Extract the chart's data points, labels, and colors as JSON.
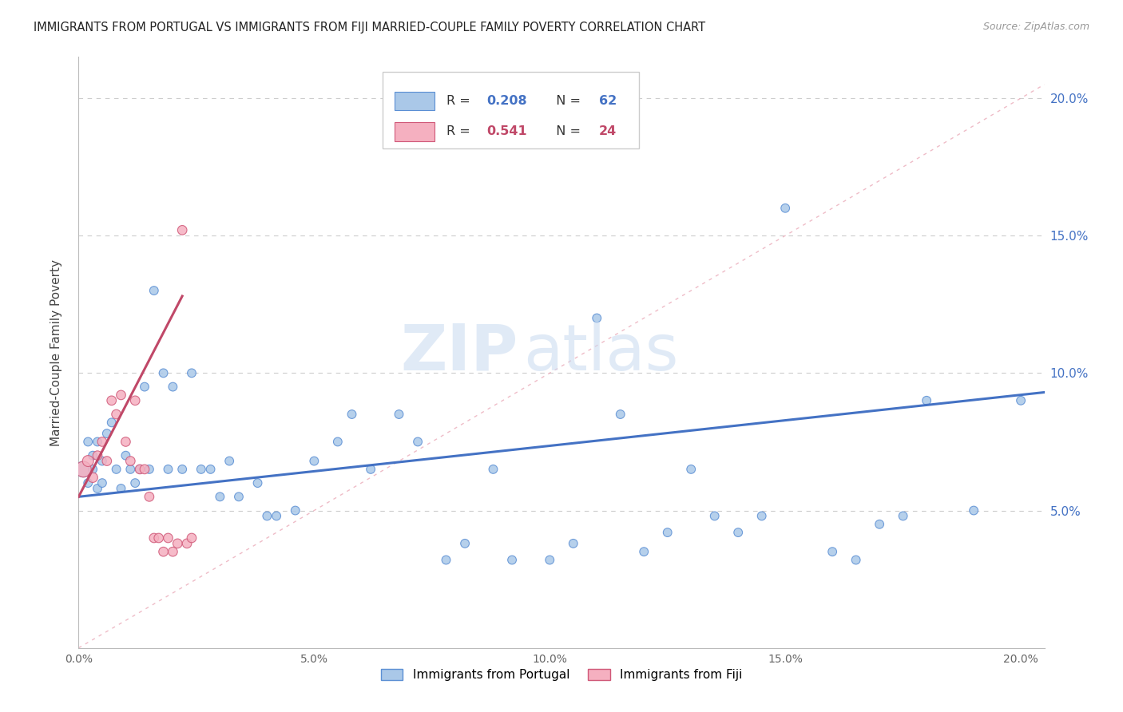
{
  "title": "IMMIGRANTS FROM PORTUGAL VS IMMIGRANTS FROM FIJI MARRIED-COUPLE FAMILY POVERTY CORRELATION CHART",
  "source": "Source: ZipAtlas.com",
  "ylabel": "Married-Couple Family Poverty",
  "xlim": [
    0.0,
    0.205
  ],
  "ylim": [
    0.0,
    0.215
  ],
  "xticks": [
    0.0,
    0.05,
    0.1,
    0.15,
    0.2
  ],
  "yticks": [
    0.05,
    0.1,
    0.15,
    0.2
  ],
  "xtick_labels": [
    "0.0%",
    "5.0%",
    "10.0%",
    "15.0%",
    "20.0%"
  ],
  "ytick_labels": [
    "5.0%",
    "10.0%",
    "15.0%",
    "20.0%"
  ],
  "legend_labels": [
    "Immigrants from Portugal",
    "Immigrants from Fiji"
  ],
  "portugal_color": "#aac8e8",
  "fiji_color": "#f5b0c0",
  "portugal_edge_color": "#5b8fd4",
  "fiji_edge_color": "#d05878",
  "portugal_line_color": "#4472c4",
  "fiji_line_color": "#c04868",
  "watermark_zip": "ZIP",
  "watermark_atlas": "atlas",
  "portugal_r": "0.208",
  "portugal_n": "62",
  "fiji_r": "0.541",
  "fiji_n": "24",
  "portugal_x": [
    0.001,
    0.002,
    0.002,
    0.003,
    0.003,
    0.004,
    0.004,
    0.005,
    0.005,
    0.006,
    0.007,
    0.008,
    0.009,
    0.01,
    0.011,
    0.012,
    0.013,
    0.014,
    0.015,
    0.016,
    0.018,
    0.019,
    0.02,
    0.022,
    0.024,
    0.026,
    0.028,
    0.03,
    0.032,
    0.034,
    0.038,
    0.04,
    0.042,
    0.046,
    0.05,
    0.055,
    0.058,
    0.062,
    0.068,
    0.072,
    0.078,
    0.082,
    0.088,
    0.092,
    0.1,
    0.105,
    0.11,
    0.115,
    0.12,
    0.125,
    0.13,
    0.135,
    0.14,
    0.145,
    0.15,
    0.16,
    0.165,
    0.17,
    0.175,
    0.18,
    0.19,
    0.2
  ],
  "portugal_y": [
    0.065,
    0.06,
    0.075,
    0.065,
    0.07,
    0.058,
    0.075,
    0.068,
    0.06,
    0.078,
    0.082,
    0.065,
    0.058,
    0.07,
    0.065,
    0.06,
    0.065,
    0.095,
    0.065,
    0.13,
    0.1,
    0.065,
    0.095,
    0.065,
    0.1,
    0.065,
    0.065,
    0.055,
    0.068,
    0.055,
    0.06,
    0.048,
    0.048,
    0.05,
    0.068,
    0.075,
    0.085,
    0.065,
    0.085,
    0.075,
    0.032,
    0.038,
    0.065,
    0.032,
    0.032,
    0.038,
    0.12,
    0.085,
    0.035,
    0.042,
    0.065,
    0.048,
    0.042,
    0.048,
    0.16,
    0.035,
    0.032,
    0.045,
    0.048,
    0.09,
    0.05,
    0.09
  ],
  "fiji_x": [
    0.001,
    0.002,
    0.003,
    0.004,
    0.005,
    0.006,
    0.007,
    0.008,
    0.009,
    0.01,
    0.011,
    0.012,
    0.013,
    0.014,
    0.015,
    0.016,
    0.017,
    0.018,
    0.019,
    0.02,
    0.021,
    0.022,
    0.023,
    0.024
  ],
  "fiji_y": [
    0.065,
    0.068,
    0.062,
    0.07,
    0.075,
    0.068,
    0.09,
    0.085,
    0.092,
    0.075,
    0.068,
    0.09,
    0.065,
    0.065,
    0.055,
    0.04,
    0.04,
    0.035,
    0.04,
    0.035,
    0.038,
    0.152,
    0.038,
    0.04
  ],
  "portugal_sizes": [
    200,
    60,
    60,
    60,
    60,
    60,
    60,
    60,
    60,
    60,
    60,
    60,
    60,
    60,
    60,
    60,
    60,
    60,
    60,
    60,
    60,
    60,
    60,
    60,
    60,
    60,
    60,
    60,
    60,
    60,
    60,
    60,
    60,
    60,
    60,
    60,
    60,
    60,
    60,
    60,
    60,
    60,
    60,
    60,
    60,
    60,
    60,
    60,
    60,
    60,
    60,
    60,
    60,
    60,
    60,
    60,
    60,
    60,
    60,
    60,
    60,
    60
  ],
  "fiji_sizes": [
    200,
    100,
    80,
    70,
    70,
    70,
    70,
    70,
    70,
    70,
    70,
    70,
    70,
    70,
    70,
    70,
    70,
    70,
    70,
    70,
    70,
    70,
    70,
    70
  ],
  "port_line_x0": 0.0,
  "port_line_x1": 0.205,
  "port_line_y0": 0.055,
  "port_line_y1": 0.093,
  "fiji_line_x0": 0.0,
  "fiji_line_x1": 0.022,
  "fiji_line_y0": 0.055,
  "fiji_line_y1": 0.128,
  "ref_line_x0": 0.0,
  "ref_line_x1": 0.205,
  "ref_line_y0": 0.0,
  "ref_line_y1": 0.205
}
